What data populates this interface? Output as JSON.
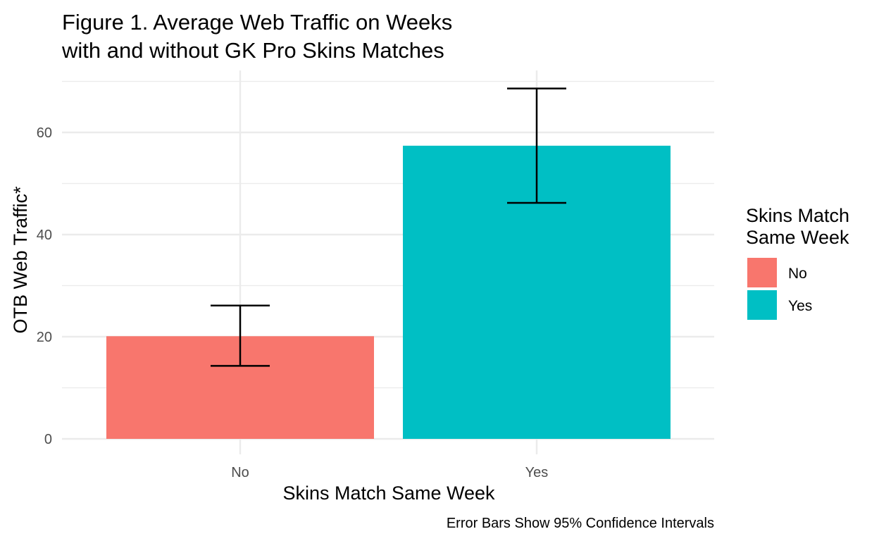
{
  "chart_data": {
    "type": "bar",
    "title_lines": [
      "Figure 1. Average Web Traffic on Weeks",
      "with and without GK Pro Skins Matches"
    ],
    "xlabel": "Skins Match Same Week",
    "ylabel": "OTB Web Traffic*",
    "caption": "Error Bars Show 95% Confidence Intervals",
    "categories": [
      "No",
      "Yes"
    ],
    "values": [
      20.1,
      57.4
    ],
    "error_bars": [
      {
        "low": 14.3,
        "high": 26.1
      },
      {
        "low": 46.2,
        "high": 68.6
      }
    ],
    "colors": [
      "#F8766D",
      "#00BFC4"
    ],
    "ylim": [
      0,
      70
    ],
    "y_ticks": [
      0,
      20,
      40,
      60
    ],
    "grid": true,
    "legend": {
      "title_lines": [
        "Skins Match",
        "Same Week"
      ],
      "entries": [
        {
          "label": "No",
          "color": "#F8766D"
        },
        {
          "label": "Yes",
          "color": "#00BFC4"
        }
      ],
      "placement": "right"
    }
  }
}
